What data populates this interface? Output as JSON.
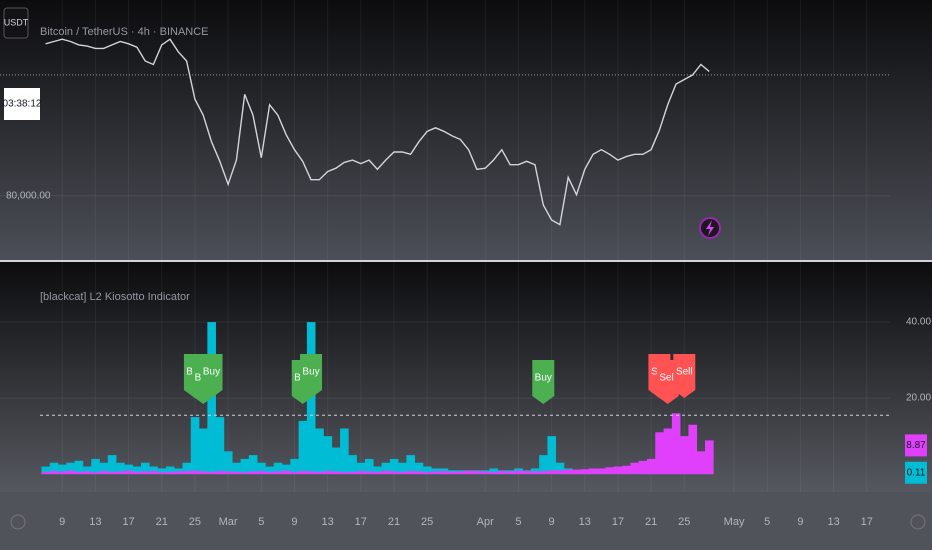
{
  "chart_data": [
    {
      "type": "line",
      "title": "Bitcoin / TetherUS · 4h · BINANCE",
      "currency": "USDT",
      "countdown": "03:38:12",
      "color": "#d1d4dc",
      "price_line": 90500,
      "x": [
        7,
        8,
        9,
        10,
        11,
        12,
        13,
        14,
        15,
        16,
        17,
        18,
        19,
        20,
        21,
        22,
        23,
        24,
        25,
        26,
        27,
        28,
        29,
        30,
        31,
        32,
        33,
        34,
        35,
        36,
        37,
        38,
        39,
        40,
        41,
        42,
        43,
        44,
        45,
        46,
        47,
        48,
        49,
        50,
        51,
        52,
        53,
        54,
        55,
        56,
        57,
        58,
        59,
        60,
        61,
        62,
        63,
        64,
        65,
        66,
        67,
        68,
        69,
        70,
        71,
        72,
        73,
        74,
        75,
        76,
        77,
        78,
        79,
        80,
        81,
        82,
        83,
        84,
        85,
        86,
        87
      ],
      "values": [
        93200,
        93400,
        93600,
        93400,
        93100,
        93000,
        92800,
        92800,
        93100,
        93400,
        93200,
        92900,
        91700,
        91400,
        93100,
        93600,
        92500,
        91700,
        88400,
        87000,
        84700,
        83000,
        81000,
        83100,
        88800,
        87000,
        83300,
        87900,
        87000,
        85300,
        84000,
        83000,
        81400,
        81400,
        82100,
        82400,
        82900,
        83100,
        82800,
        83100,
        82300,
        83100,
        83800,
        83800,
        83600,
        84700,
        85600,
        85900,
        85600,
        85200,
        84900,
        84000,
        82300,
        82400,
        83100,
        84000,
        82700,
        82700,
        83000,
        82700,
        79200,
        77900,
        77500,
        81600,
        80100,
        82300,
        83600,
        84000,
        83600,
        83100,
        83400,
        83600,
        83600,
        84000,
        85700,
        87900,
        89700,
        90100,
        90500,
        91400,
        90800
      ],
      "xlim": [
        1.5,
        108.8
      ],
      "ylim": [
        74600,
        97000
      ],
      "yticks": [
        {
          "value": 80000,
          "label": "80,000.00"
        }
      ]
    },
    {
      "type": "columns",
      "title": "[blackcat] L2 Kiosotto Indicator",
      "hline": 15.5,
      "x": [
        7,
        8,
        9,
        10,
        11,
        12,
        13,
        14,
        15,
        16,
        17,
        18,
        19,
        20,
        21,
        22,
        23,
        24,
        25,
        26,
        27,
        28,
        29,
        30,
        31,
        32,
        33,
        34,
        35,
        36,
        37,
        38,
        39,
        40,
        41,
        42,
        43,
        44,
        45,
        46,
        47,
        48,
        49,
        50,
        51,
        52,
        53,
        54,
        55,
        56,
        57,
        58,
        59,
        60,
        61,
        62,
        63,
        64,
        65,
        66,
        67,
        68,
        69,
        70,
        71,
        72,
        73,
        74,
        75,
        76,
        77,
        78,
        79,
        80,
        81,
        82,
        83,
        84,
        85,
        86,
        87
      ],
      "series": [
        {
          "color": "#00bcd4",
          "values": [
            2,
            3,
            2.5,
            3,
            3.5,
            2,
            4,
            3,
            5,
            3,
            2.5,
            2,
            3,
            2,
            1.5,
            2,
            1.5,
            3,
            15,
            12,
            40,
            15,
            6,
            3,
            4,
            5,
            3,
            2,
            3,
            2.5,
            4,
            14,
            40,
            12,
            10,
            7,
            12,
            5,
            3,
            4,
            2,
            3,
            4,
            3,
            5,
            3,
            2,
            1.5,
            1.5,
            1,
            1,
            1,
            1,
            1,
            1.5,
            1,
            1,
            1.5,
            1,
            1.5,
            5,
            10,
            3,
            1.5,
            1,
            1,
            0.8,
            0.6,
            0.6,
            0.5,
            0.5,
            0.5,
            0.6,
            0.5,
            0.5,
            0.4,
            0.4,
            0.3,
            0.3,
            0.2,
            0.11
          ]
        },
        {
          "color": "#e040fb",
          "values": [
            0.6,
            0.8,
            0.7,
            0.9,
            0.6,
            0.7,
            0.5,
            0.8,
            0.6,
            0.7,
            0.9,
            0.6,
            0.7,
            0.8,
            0.5,
            0.6,
            0.7,
            0.8,
            0.9,
            0.7,
            0.6,
            0.8,
            0.7,
            0.6,
            0.5,
            0.7,
            0.8,
            0.6,
            0.7,
            0.9,
            0.6,
            0.8,
            0.7,
            0.6,
            0.8,
            0.7,
            0.5,
            0.6,
            0.8,
            0.7,
            0.6,
            0.9,
            0.7,
            0.6,
            0.8,
            0.7,
            0.6,
            0.7,
            0.8,
            0.6,
            0.7,
            0.9,
            0.8,
            0.7,
            0.6,
            0.8,
            0.7,
            0.9,
            0.8,
            0.7,
            0.8,
            1,
            1,
            1.2,
            1.2,
            1.3,
            1.5,
            1.5,
            1.8,
            2,
            2.2,
            3,
            3.5,
            4,
            11,
            12,
            16,
            10,
            13,
            6,
            8.87
          ]
        }
      ],
      "annotations": [
        {
          "text": "Buy",
          "x": 25,
          "color": "#4caf50"
        },
        {
          "text": "Buy",
          "x": 26,
          "color": "#4caf50"
        },
        {
          "text": "Buy",
          "x": 27,
          "color": "#4caf50"
        },
        {
          "text": "Buy",
          "x": 38,
          "color": "#4caf50"
        },
        {
          "text": "Buy",
          "x": 39,
          "color": "#4caf50"
        },
        {
          "text": "Buy",
          "x": 67,
          "color": "#4caf50"
        },
        {
          "text": "Sell",
          "x": 81,
          "color": "#ff5252"
        },
        {
          "text": "Sell",
          "x": 82,
          "color": "#ff5252"
        },
        {
          "text": "Sell",
          "x": 84,
          "color": "#ff5252"
        }
      ],
      "xlim": [
        1.5,
        108.8
      ],
      "ylim": [
        -4.7,
        55.8
      ],
      "yticks": [
        {
          "value": 20,
          "label": "20.00"
        },
        {
          "value": 40,
          "label": "40.00"
        }
      ],
      "xticks": [
        {
          "value": 9,
          "label": "9"
        },
        13,
        17,
        21,
        25,
        {
          "value": 29,
          "label": "Mar"
        },
        {
          "value": 33,
          "label": "5"
        },
        {
          "value": 37,
          "label": "9"
        },
        {
          "value": 41,
          "label": "13"
        },
        {
          "value": 45,
          "label": "17"
        },
        {
          "value": 49,
          "label": "21"
        },
        {
          "value": 53,
          "label": "25"
        },
        {
          "value": 60,
          "label": "Apr"
        },
        {
          "value": 64,
          "label": "5"
        },
        {
          "value": 68,
          "label": "9"
        },
        {
          "value": 72,
          "label": "13"
        },
        {
          "value": 76,
          "label": "17"
        },
        {
          "value": 80,
          "label": "21"
        },
        {
          "value": 84,
          "label": "25"
        },
        {
          "value": 90,
          "label": "May"
        },
        {
          "value": 94,
          "label": "5"
        },
        {
          "value": 98,
          "label": "9"
        },
        {
          "value": 102,
          "label": "13"
        },
        {
          "value": 106,
          "label": "17"
        }
      ]
    }
  ]
}
